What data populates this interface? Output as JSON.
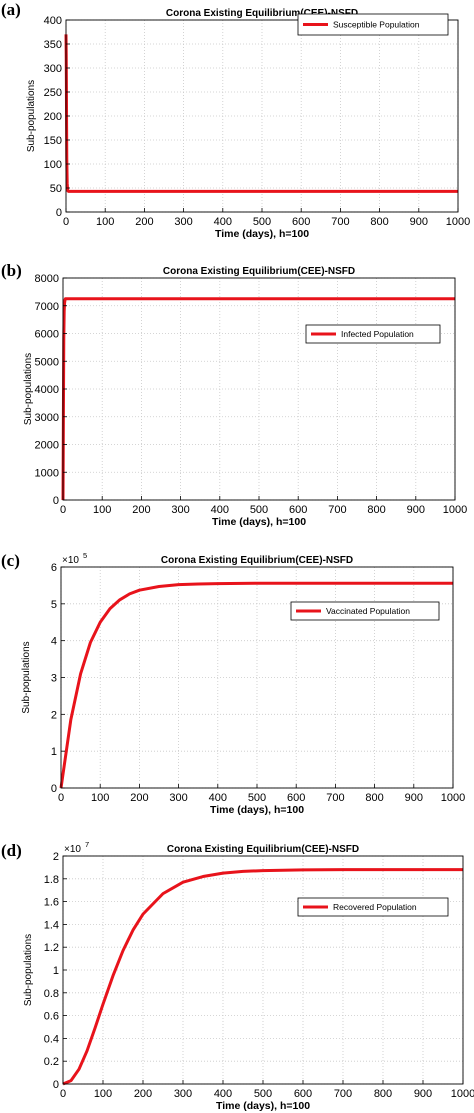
{
  "chart_data": [
    {
      "panel": "(a)",
      "type": "line",
      "title": "Corona Existing Equilibrium(CEE)-NSFD",
      "xlabel": "Time (days), h=100",
      "ylabel": "Sub-populations",
      "xlim": [
        0,
        1000
      ],
      "ylim": [
        0,
        400
      ],
      "xticks": [
        0,
        100,
        200,
        300,
        400,
        500,
        600,
        700,
        800,
        900,
        1000
      ],
      "yticks": [
        0,
        50,
        100,
        150,
        200,
        250,
        300,
        350,
        400
      ],
      "grid": true,
      "legend_position": "top-right",
      "color": "#e8131b",
      "series": [
        {
          "name": "Susceptible Population",
          "x": [
            0,
            0.5,
            1,
            1.5,
            2,
            3,
            4,
            5,
            6,
            8,
            1000
          ],
          "y": [
            370,
            330,
            270,
            180,
            110,
            60,
            47,
            44,
            43,
            43,
            43
          ]
        }
      ]
    },
    {
      "panel": "(b)",
      "type": "line",
      "title": "Corona Existing Equilibrium(CEE)-NSFD",
      "xlabel": "Time (days), h=100",
      "ylabel": "Sub-populations",
      "xlim": [
        0,
        1000
      ],
      "ylim": [
        0,
        8000
      ],
      "xticks": [
        0,
        100,
        200,
        300,
        400,
        500,
        600,
        700,
        800,
        900,
        1000
      ],
      "yticks": [
        0,
        1000,
        2000,
        3000,
        4000,
        5000,
        6000,
        7000,
        8000
      ],
      "grid": true,
      "legend_position": "right",
      "color": "#e8131b",
      "series": [
        {
          "name": "Infected Population",
          "x": [
            0,
            1,
            2,
            3,
            4,
            5,
            6,
            8,
            1000
          ],
          "y": [
            0,
            3000,
            5800,
            6800,
            7100,
            7200,
            7250,
            7250,
            7250
          ]
        }
      ]
    },
    {
      "panel": "(c)",
      "type": "line",
      "title": "Corona Existing Equilibrium(CEE)-NSFD",
      "xlabel": "Time (days), h=100",
      "ylabel": "Sub-populations",
      "xlim": [
        0,
        1000
      ],
      "ylim": [
        0,
        6
      ],
      "y_multiplier": "10^5",
      "xticks": [
        0,
        100,
        200,
        300,
        400,
        500,
        600,
        700,
        800,
        900,
        1000
      ],
      "yticks": [
        0,
        1,
        2,
        3,
        4,
        5,
        6
      ],
      "grid": true,
      "legend_position": "right",
      "color": "#e8131b",
      "series": [
        {
          "name": "Vaccinated Population",
          "x": [
            0,
            25,
            50,
            75,
            100,
            125,
            150,
            175,
            200,
            250,
            300,
            350,
            400,
            500,
            600,
            700,
            800,
            900,
            1000
          ],
          "y": [
            0,
            1.85,
            3.1,
            3.95,
            4.5,
            4.87,
            5.11,
            5.27,
            5.37,
            5.47,
            5.52,
            5.54,
            5.55,
            5.56,
            5.56,
            5.56,
            5.56,
            5.56,
            5.56
          ]
        }
      ]
    },
    {
      "panel": "(d)",
      "type": "line",
      "title": "Corona Existing Equilibrium(CEE)-NSFD",
      "xlabel": "Time (days), h=100",
      "ylabel": "Sub-populations",
      "xlim": [
        0,
        1000
      ],
      "ylim": [
        0,
        2
      ],
      "y_multiplier": "10^7",
      "xticks": [
        0,
        100,
        200,
        300,
        400,
        500,
        600,
        700,
        800,
        900,
        1000
      ],
      "yticks": [
        0,
        0.2,
        0.4,
        0.6,
        0.8,
        1,
        1.2,
        1.4,
        1.6,
        1.8,
        2
      ],
      "grid": true,
      "legend_position": "top-right",
      "color": "#e8131b",
      "series": [
        {
          "name": "Recovered Population",
          "x": [
            0,
            20,
            40,
            60,
            80,
            100,
            125,
            150,
            175,
            200,
            250,
            300,
            350,
            400,
            450,
            500,
            600,
            700,
            800,
            900,
            1000
          ],
          "y": [
            0,
            0.03,
            0.13,
            0.29,
            0.49,
            0.7,
            0.95,
            1.17,
            1.35,
            1.49,
            1.67,
            1.77,
            1.82,
            1.85,
            1.865,
            1.872,
            1.878,
            1.88,
            1.88,
            1.88,
            1.88
          ]
        }
      ]
    }
  ]
}
